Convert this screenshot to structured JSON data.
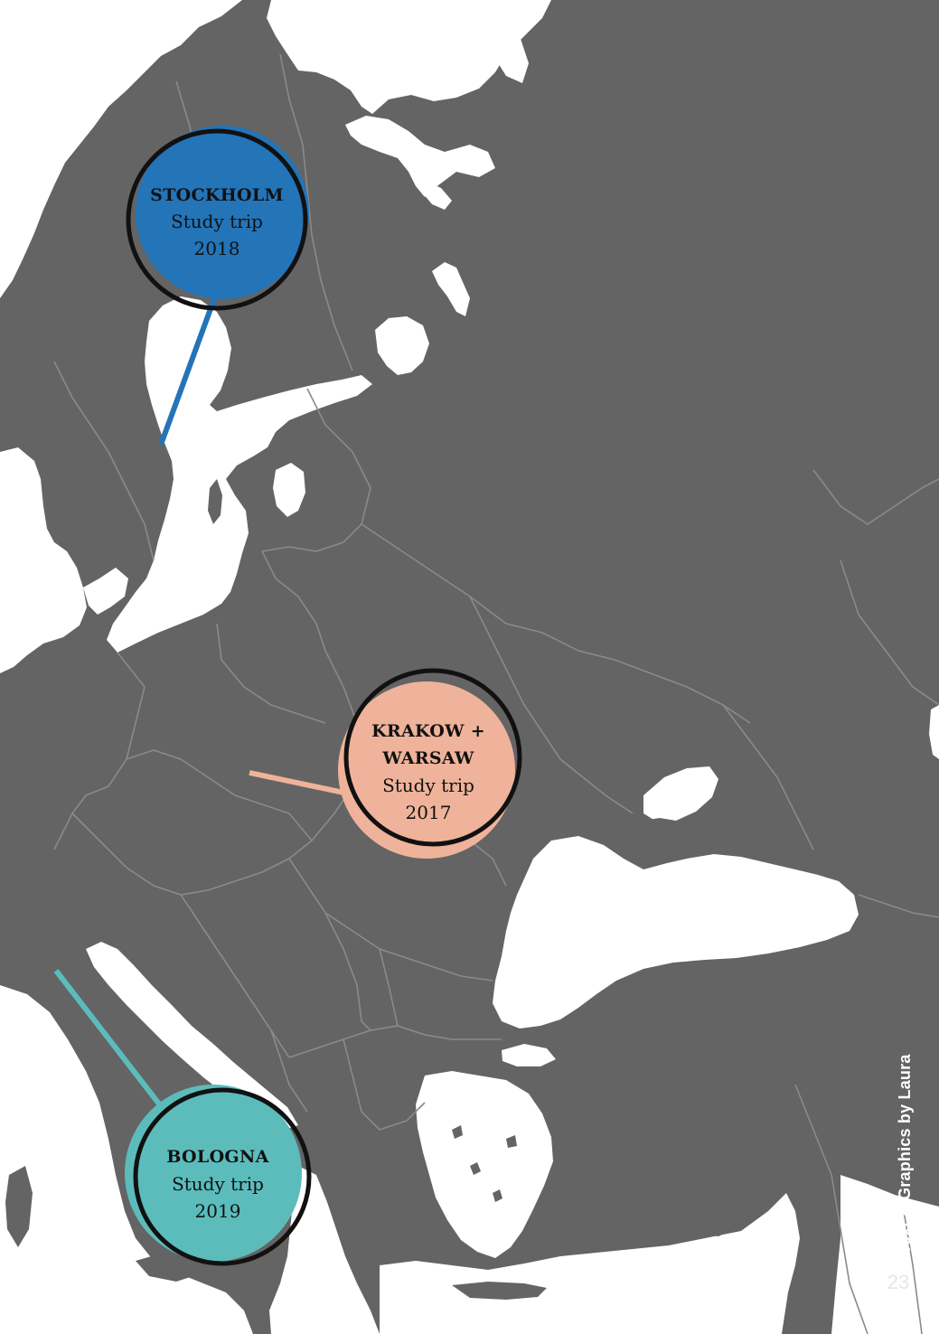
{
  "page": {
    "credit": "Text & Graphics by Laura",
    "page_number": "23"
  },
  "colors": {
    "land": "#646464",
    "water": "#ffffff",
    "borders": "#8a8a8a",
    "stockholm": "#2474b8",
    "krakow": "#eeb39a",
    "bologna": "#5cbcbc",
    "ring": "#111111"
  },
  "markers": [
    {
      "id": "stockholm",
      "title_lines": [
        "STOCKHOLM"
      ],
      "subtitle": "Study trip",
      "year": "2018"
    },
    {
      "id": "krakow-warsaw",
      "title_lines": [
        "KRAKOW +",
        "WARSAW"
      ],
      "subtitle": "Study trip",
      "year": "2017"
    },
    {
      "id": "bologna",
      "title_lines": [
        "BOLOGNA"
      ],
      "subtitle": "Study trip",
      "year": "2019"
    }
  ]
}
